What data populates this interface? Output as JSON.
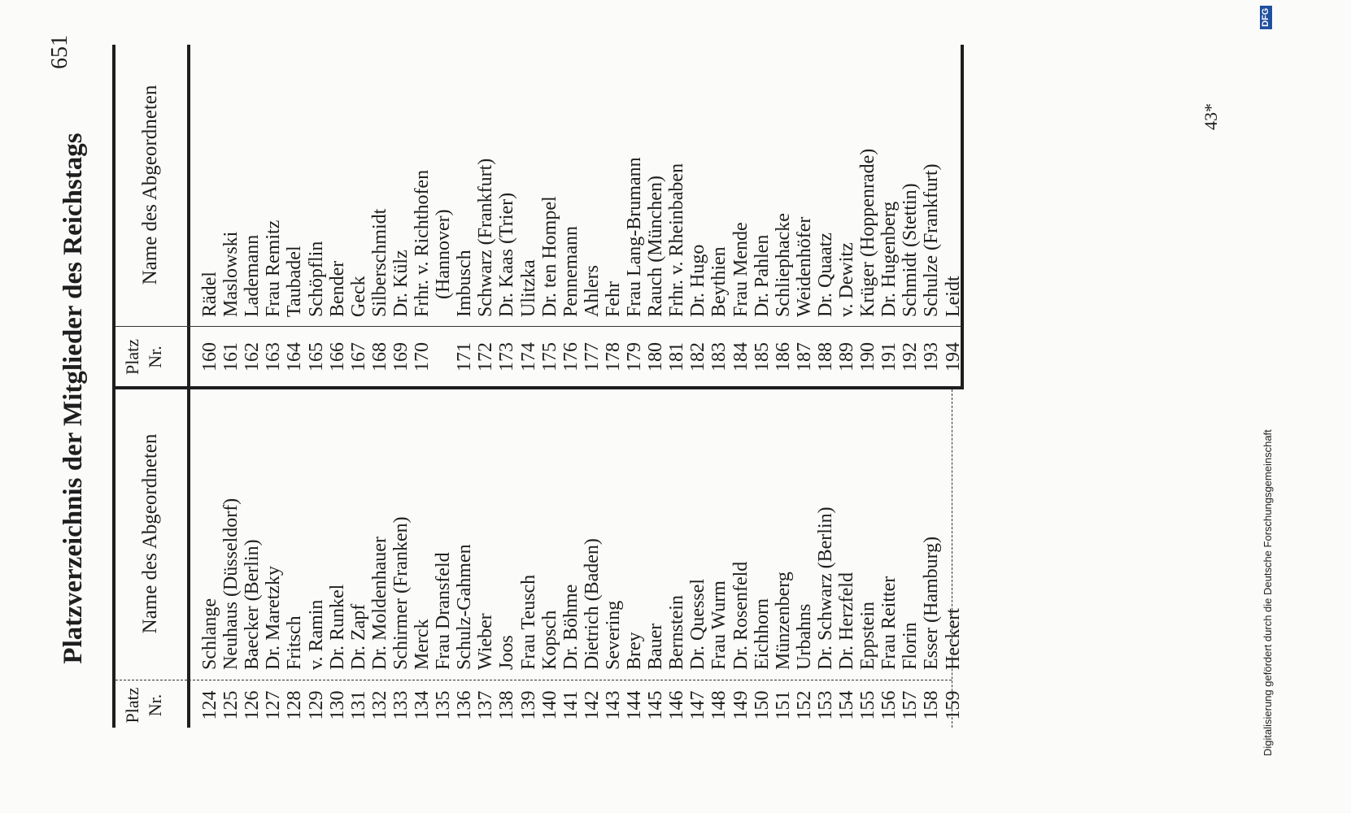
{
  "page": {
    "title": "Platzverzeichnis der Mitglieder des Reichstags",
    "page_number": "651",
    "footer": "43*",
    "credit": "Digitalisierung gefördert durch die Deutsche Forschungsgemeinschaft",
    "logo": "DFG"
  },
  "tables": [
    {
      "header": {
        "number": [
          "Platz",
          "Nr."
        ],
        "name": "Name des Abgeordneten"
      },
      "rows": [
        [
          124,
          "Schlange"
        ],
        [
          125,
          "Neuhaus (Düsseldorf)"
        ],
        [
          126,
          "Baecker (Berlin)"
        ],
        [
          127,
          "Dr. Maretzky"
        ],
        [
          128,
          "Fritsch"
        ],
        [
          129,
          "v. Ramin"
        ],
        [
          130,
          "Dr. Runkel"
        ],
        [
          131,
          "Dr. Zapf"
        ],
        [
          132,
          "Dr. Moldenhauer"
        ],
        [
          133,
          "Schirmer (Franken)"
        ],
        [
          134,
          "Merck"
        ],
        [
          135,
          "Frau Dransfeld"
        ],
        [
          136,
          "Schulz-Gahmen"
        ],
        [
          137,
          "Wieber"
        ],
        [
          138,
          "Joos"
        ],
        [
          139,
          "Frau Teusch"
        ],
        [
          140,
          "Kopsch"
        ],
        [
          141,
          "Dr. Böhme"
        ],
        [
          142,
          "Dietrich (Baden)"
        ],
        [
          143,
          "Severing"
        ],
        [
          144,
          "Brey"
        ],
        [
          145,
          "Bauer"
        ],
        [
          146,
          "Bernstein"
        ],
        [
          147,
          "Dr. Quessel"
        ],
        [
          148,
          "Frau Wurm"
        ],
        [
          149,
          "Dr. Rosenfeld"
        ],
        [
          150,
          "Eichhorn"
        ],
        [
          151,
          "Münzenberg"
        ],
        [
          152,
          "Urbahns"
        ],
        [
          153,
          "Dr. Schwarz (Berlin)"
        ],
        [
          154,
          "Dr. Herzfeld"
        ],
        [
          155,
          "Eppstein"
        ],
        [
          156,
          "Frau Reitter"
        ],
        [
          157,
          "Florin"
        ],
        [
          158,
          "Esser (Hamburg)"
        ],
        [
          159,
          "Heckert"
        ]
      ]
    },
    {
      "header": {
        "number": [
          "Platz",
          "Nr."
        ],
        "name": "Name des Abgeordneten"
      },
      "rows": [
        [
          160,
          "Rädel"
        ],
        [
          161,
          "Maslowski"
        ],
        [
          162,
          "Lademann"
        ],
        [
          163,
          "Frau Remitz"
        ],
        [
          164,
          "Taubadel"
        ],
        [
          165,
          "Schöpflin"
        ],
        [
          166,
          "Bender"
        ],
        [
          167,
          "Geck"
        ],
        [
          168,
          "Silberschmidt"
        ],
        [
          169,
          "Dr. Külz"
        ],
        [
          170,
          "Frhr. v. Richthofen",
          "(Hannover)"
        ],
        [
          171,
          "Imbusch"
        ],
        [
          172,
          "Schwarz (Frankfurt)"
        ],
        [
          173,
          "Dr. Kaas (Trier)"
        ],
        [
          174,
          "Ulitzka"
        ],
        [
          175,
          "Dr. ten Hompel"
        ],
        [
          176,
          "Pennemann"
        ],
        [
          177,
          "Ahlers"
        ],
        [
          178,
          "Fehr"
        ],
        [
          179,
          "Frau Lang-Brumann"
        ],
        [
          180,
          "Rauch (München)"
        ],
        [
          181,
          "Frhr. v. Rheinbaben"
        ],
        [
          182,
          "Dr. Hugo"
        ],
        [
          183,
          "Beythien"
        ],
        [
          184,
          "Frau Mende"
        ],
        [
          185,
          "Dr. Pahlen"
        ],
        [
          186,
          "Schliephacke"
        ],
        [
          187,
          "Weidenhöfer"
        ],
        [
          188,
          "Dr. Quaatz"
        ],
        [
          189,
          "v. Dewitz"
        ],
        [
          190,
          "Krüger (Hoppenrade)"
        ],
        [
          191,
          "Dr. Hugenberg"
        ],
        [
          192,
          "Schmidt (Stettin)"
        ],
        [
          193,
          "Schulze (Frankfurt)"
        ],
        [
          194,
          "Leidt"
        ]
      ]
    }
  ]
}
